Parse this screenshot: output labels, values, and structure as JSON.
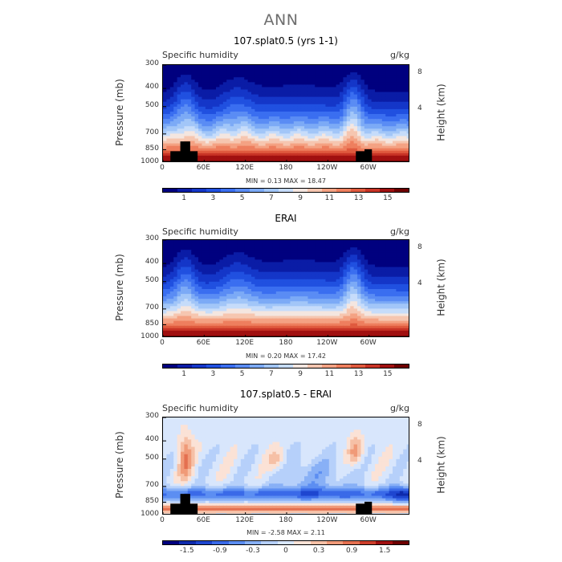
{
  "page": {
    "title": "ANN"
  },
  "panels": [
    {
      "title": "107.splat0.5 (yrs 1-1)",
      "left_label": "Specific humidity",
      "right_label": "g/kg",
      "ylabel": "Pressure (mb)",
      "y2label": "Height (km)",
      "minmax": "MIN =    0.13   MAX =   18.47"
    },
    {
      "title": "ERAI",
      "left_label": "Specific humidity",
      "right_label": "g/kg",
      "ylabel": "Pressure (mb)",
      "y2label": "Height (km)",
      "minmax": "MIN =    0.20   MAX =   17.42"
    },
    {
      "title": "107.splat0.5 - ERAI",
      "left_label": "Specific humidity",
      "right_label": "g/kg",
      "ylabel": "Pressure (mb)",
      "y2label": "Height (km)",
      "minmax": "MIN =  -2.58   MAX =    2.11"
    }
  ],
  "chart_data": [
    {
      "type": "heatmap",
      "title": "107.splat0.5 (yrs 1-1)",
      "xlabel": "",
      "ylabel": "Pressure (mb)",
      "y2label": "Height (km)",
      "x_ticks": [
        "0",
        "60E",
        "120E",
        "180",
        "120W",
        "60W"
      ],
      "y_ticks": [
        "300",
        "400",
        "500",
        "700",
        "850",
        "1000"
      ],
      "y2_ticks": [
        "8",
        "4"
      ],
      "min": 0.13,
      "max": 18.47,
      "colorbar_labels": [
        "1",
        "3",
        "5",
        "7",
        "9",
        "11",
        "13",
        "15"
      ]
    },
    {
      "type": "heatmap",
      "title": "ERAI",
      "xlabel": "",
      "ylabel": "Pressure (mb)",
      "y2label": "Height (km)",
      "x_ticks": [
        "0",
        "60E",
        "120E",
        "180",
        "120W",
        "60W"
      ],
      "y_ticks": [
        "300",
        "400",
        "500",
        "700",
        "850",
        "1000"
      ],
      "y2_ticks": [
        "8",
        "4"
      ],
      "min": 0.2,
      "max": 17.42,
      "colorbar_labels": [
        "1",
        "3",
        "5",
        "7",
        "9",
        "11",
        "13",
        "15"
      ]
    },
    {
      "type": "heatmap",
      "title": "107.splat0.5 - ERAI",
      "xlabel": "",
      "ylabel": "Pressure (mb)",
      "y2label": "Height (km)",
      "x_ticks": [
        "0",
        "60E",
        "120E",
        "180",
        "120W",
        "60W"
      ],
      "y_ticks": [
        "300",
        "400",
        "500",
        "700",
        "850",
        "1000"
      ],
      "y2_ticks": [
        "8",
        "4"
      ],
      "min": -2.58,
      "max": 2.11,
      "colorbar_labels": [
        "-1.5",
        "-0.9",
        "-0.3",
        "0",
        "0.3",
        "0.9",
        "1.5"
      ]
    }
  ],
  "colors": {
    "seq_scale": [
      "#00007f",
      "#0a1ca6",
      "#1436c8",
      "#2050e0",
      "#3a6ef0",
      "#5a8cf4",
      "#7caaf6",
      "#a2c6f8",
      "#c6dcfa",
      "#f4e6e0",
      "#f6c6b0",
      "#f4a283",
      "#ee7f5e",
      "#e05a3e",
      "#c83426",
      "#a01010",
      "#6e0000"
    ],
    "diff_scale": [
      "#00007f",
      "#0e2aac",
      "#1e46d0",
      "#3a6ae8",
      "#5c8ef2",
      "#88b0f6",
      "#b6d0fa",
      "#d8e6fc",
      "#fbe2d6",
      "#f6c0a6",
      "#f09a78",
      "#e47050",
      "#cc3e2a",
      "#a01010",
      "#6e0000"
    ]
  }
}
